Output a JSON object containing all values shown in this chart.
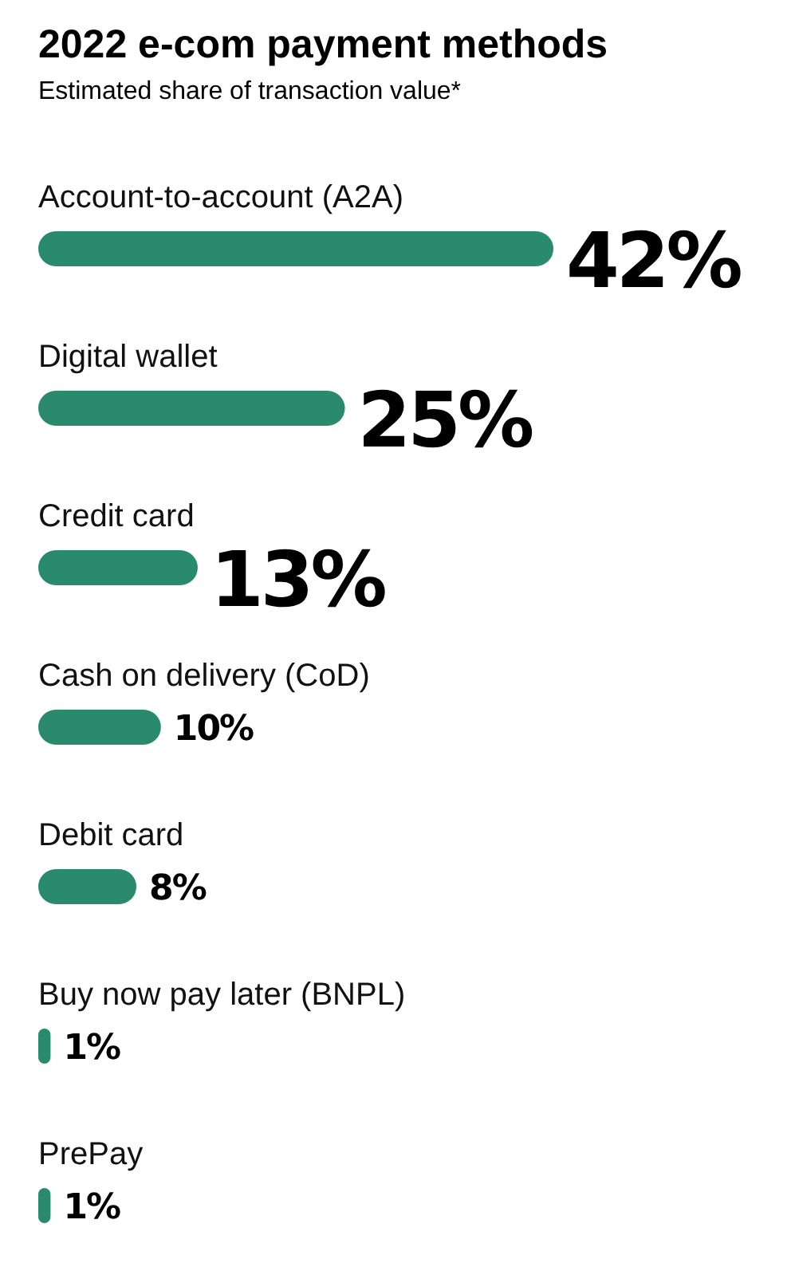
{
  "chart_data": {
    "type": "bar",
    "orientation": "horizontal",
    "title": "2022 e-com payment methods",
    "subtitle": "Estimated share of transaction value*",
    "categories": [
      "Account-to-account (A2A)",
      "Digital wallet",
      "Credit card",
      "Cash on delivery (CoD)",
      "Debit card",
      "Buy now pay later (BNPL)",
      "PrePay"
    ],
    "values": [
      42,
      25,
      13,
      10,
      8,
      1,
      1
    ],
    "value_labels": [
      "42%",
      "25%",
      "13%",
      "10%",
      "8%",
      "1%",
      "1%"
    ],
    "color": "#2a8a6c"
  }
}
